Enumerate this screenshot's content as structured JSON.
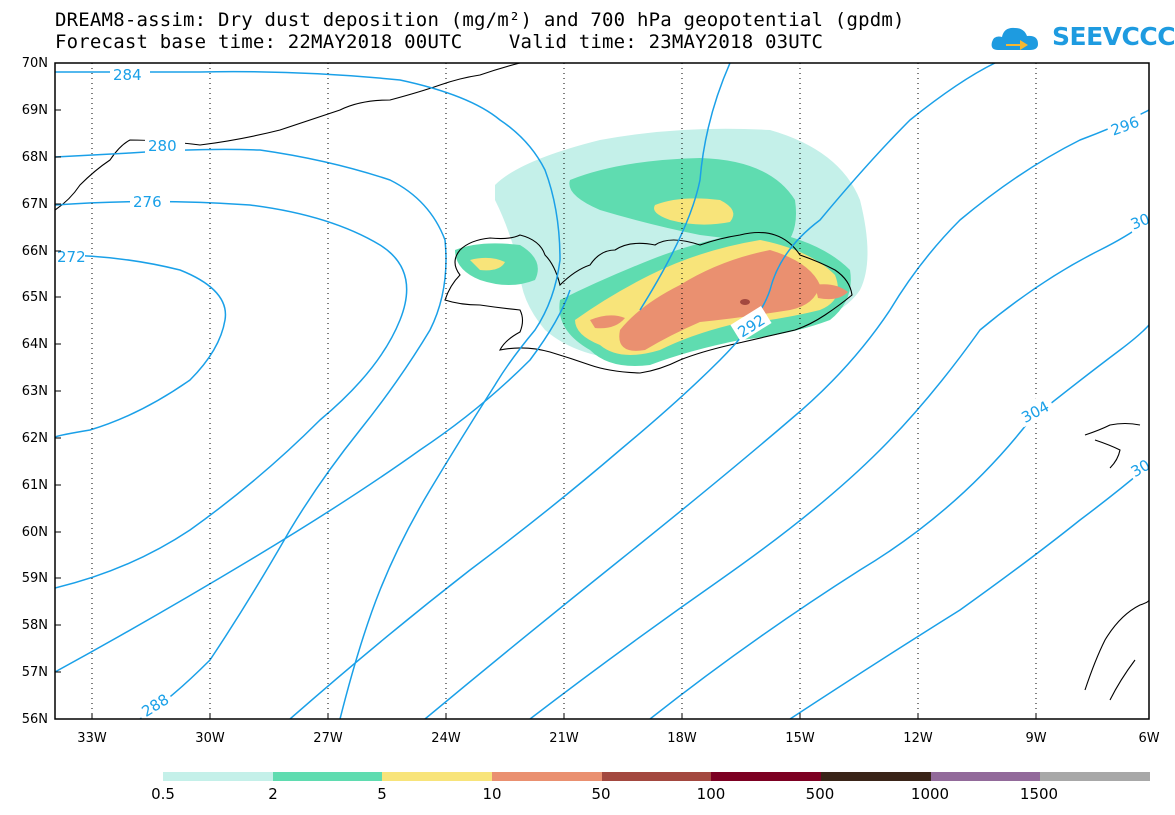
{
  "title": {
    "line1": "DREAM8-assim: Dry dust deposition (mg/m²) and 700 hPa geopotential (gpdm)",
    "line2": "Forecast base time: 22MAY2018 00UTC    Valid time: 23MAY2018 03UTC"
  },
  "logo": {
    "text": "SEEVCCC",
    "icon": "cloud-arrow-icon",
    "color": "#1e9be0"
  },
  "map": {
    "lat_labels": [
      "70N",
      "69N",
      "68N",
      "67N",
      "66N",
      "65N",
      "64N",
      "63N",
      "62N",
      "61N",
      "60N",
      "59N",
      "58N",
      "57N",
      "56N"
    ],
    "lon_labels": [
      "33W",
      "30W",
      "27W",
      "24W",
      "21W",
      "18W",
      "15W",
      "12W",
      "9W",
      "6W"
    ],
    "contour_labels": [
      "284",
      "280",
      "276",
      "272",
      "288",
      "292",
      "296",
      "30",
      "304",
      "30"
    ],
    "contour_color": "#1aa0e8",
    "grid": "dotted"
  },
  "legend": {
    "colors": [
      "#c4f0e9",
      "#5fdcb0",
      "#f8e47a",
      "#ea9070",
      "#a3483f",
      "#7c0022",
      "#3a2418",
      "#926a9a",
      "#a8a8a8"
    ],
    "labels": [
      "0.5",
      "2",
      "5",
      "10",
      "50",
      "100",
      "500",
      "1000",
      "1500"
    ]
  }
}
